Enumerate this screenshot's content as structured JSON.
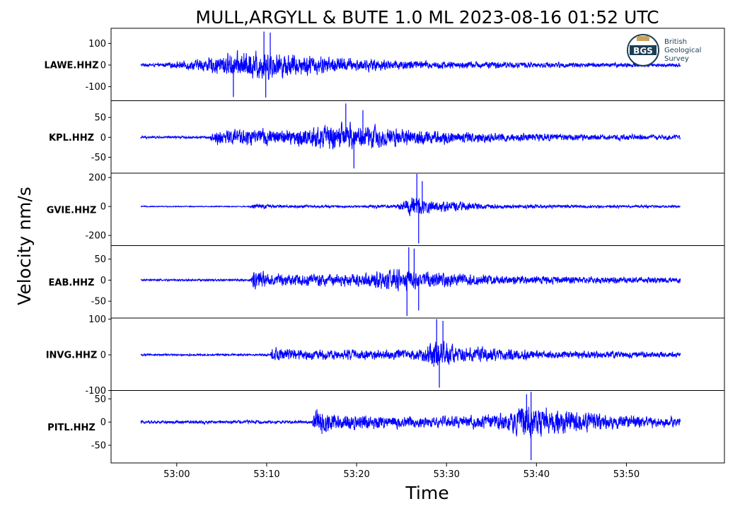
{
  "chart_data": {
    "type": "line",
    "title": "MULL,ARGYLL & BUTE 1.0 ML   2023-08-16 01:52 UTC",
    "xlabel": "Time",
    "ylabel": "Velocity nm/s",
    "x_tick_labels": [
      "53:00",
      "53:10",
      "53:20",
      "53:30",
      "53:40",
      "53:50"
    ],
    "x_tick_seconds": [
      0,
      10,
      20,
      30,
      40,
      50
    ],
    "xlim_seconds": [
      -7.3,
      60.9
    ],
    "trace_span_seconds": [
      -4,
      56
    ],
    "line_color": "#0000ff",
    "series": [
      {
        "name": "LAWE.HHZ",
        "ylim": [
          -165,
          170
        ],
        "yticks": [
          100,
          0,
          -100
        ],
        "ytick_labels": [
          "100",
          "0",
          "-100"
        ],
        "onsets": [
          [
            -2.0,
            0.06
          ],
          [
            2.2,
            0.22
          ],
          [
            5.5,
            0.45
          ],
          [
            9.5,
            0.6
          ],
          [
            13.0,
            0.45
          ],
          [
            20.0,
            0.26
          ],
          [
            30.0,
            0.15
          ],
          [
            45.0,
            0.1
          ],
          [
            56.0,
            0.08
          ]
        ],
        "peaks": [
          [
            9.7,
            155
          ],
          [
            9.9,
            -150
          ],
          [
            6.3,
            -148
          ],
          [
            10.4,
            150
          ]
        ]
      },
      {
        "name": "KPL.HHZ",
        "ylim": [
          -90,
          92
        ],
        "yticks": [
          50,
          0,
          -50
        ],
        "ytick_labels": [
          "50",
          "0",
          "-50"
        ],
        "onsets": [
          [
            -4.0,
            0.05
          ],
          [
            3.6,
            0.05
          ],
          [
            4.5,
            0.32
          ],
          [
            7.5,
            0.35
          ],
          [
            12.0,
            0.3
          ],
          [
            17.5,
            0.55
          ],
          [
            21.0,
            0.48
          ],
          [
            30.0,
            0.25
          ],
          [
            45.0,
            0.12
          ],
          [
            56.0,
            0.1
          ]
        ],
        "peaks": [
          [
            18.8,
            85
          ],
          [
            19.7,
            -78
          ],
          [
            20.7,
            68
          ]
        ]
      },
      {
        "name": "GVIE.HHZ",
        "ylim": [
          -270,
          230
        ],
        "yticks": [
          200,
          0,
          -200
        ],
        "ytick_labels": [
          "200",
          "0",
          "-200"
        ],
        "onsets": [
          [
            -4.0,
            0.02
          ],
          [
            8.0,
            0.02
          ],
          [
            8.5,
            0.1
          ],
          [
            12.0,
            0.06
          ],
          [
            20.0,
            0.04
          ],
          [
            24.5,
            0.08
          ],
          [
            26.3,
            0.45
          ],
          [
            28.0,
            0.25
          ],
          [
            35.0,
            0.08
          ],
          [
            56.0,
            0.04
          ]
        ],
        "peaks": [
          [
            26.7,
            225
          ],
          [
            26.9,
            -255
          ],
          [
            27.3,
            175
          ]
        ]
      },
      {
        "name": "EAB.HHZ",
        "ylim": [
          -90,
          82
        ],
        "yticks": [
          50,
          0,
          -50
        ],
        "ytick_labels": [
          "50",
          "0",
          "-50"
        ],
        "onsets": [
          [
            -4.0,
            0.04
          ],
          [
            8.2,
            0.04
          ],
          [
            8.5,
            0.4
          ],
          [
            11.0,
            0.25
          ],
          [
            20.0,
            0.24
          ],
          [
            24.0,
            0.45
          ],
          [
            28.0,
            0.32
          ],
          [
            36.0,
            0.18
          ],
          [
            56.0,
            0.1
          ]
        ],
        "peaks": [
          [
            25.6,
            -85
          ],
          [
            25.8,
            78
          ],
          [
            26.4,
            75
          ],
          [
            26.9,
            -72
          ]
        ]
      },
      {
        "name": "INVG.HHZ",
        "ylim": [
          -100,
          103
        ],
        "yticks": [
          100,
          0,
          -100
        ],
        "ytick_labels": [
          "100",
          "0",
          "-100"
        ],
        "onsets": [
          [
            -4.0,
            0.04
          ],
          [
            10.3,
            0.04
          ],
          [
            10.6,
            0.3
          ],
          [
            14.0,
            0.2
          ],
          [
            27.0,
            0.2
          ],
          [
            28.6,
            0.7
          ],
          [
            31.0,
            0.35
          ],
          [
            40.0,
            0.18
          ],
          [
            56.0,
            0.1
          ]
        ],
        "peaks": [
          [
            28.9,
            100
          ],
          [
            29.2,
            -92
          ],
          [
            29.6,
            95
          ]
        ]
      },
      {
        "name": "PITL.HHZ",
        "ylim": [
          -88,
          68
        ],
        "yticks": [
          50,
          0,
          -50
        ],
        "ytick_labels": [
          "50",
          "0",
          "-50"
        ],
        "onsets": [
          [
            -4.0,
            0.06
          ],
          [
            15.0,
            0.06
          ],
          [
            15.3,
            0.45
          ],
          [
            18.0,
            0.3
          ],
          [
            28.0,
            0.18
          ],
          [
            37.0,
            0.3
          ],
          [
            38.5,
            0.75
          ],
          [
            41.0,
            0.5
          ],
          [
            48.0,
            0.28
          ],
          [
            56.0,
            0.16
          ]
        ],
        "peaks": [
          [
            39.4,
            65
          ],
          [
            39.4,
            -82
          ],
          [
            38.9,
            60
          ]
        ]
      }
    ],
    "logo": {
      "initials": "BGS",
      "line1": "British",
      "line2": "Geological",
      "line3": "Survey"
    }
  }
}
